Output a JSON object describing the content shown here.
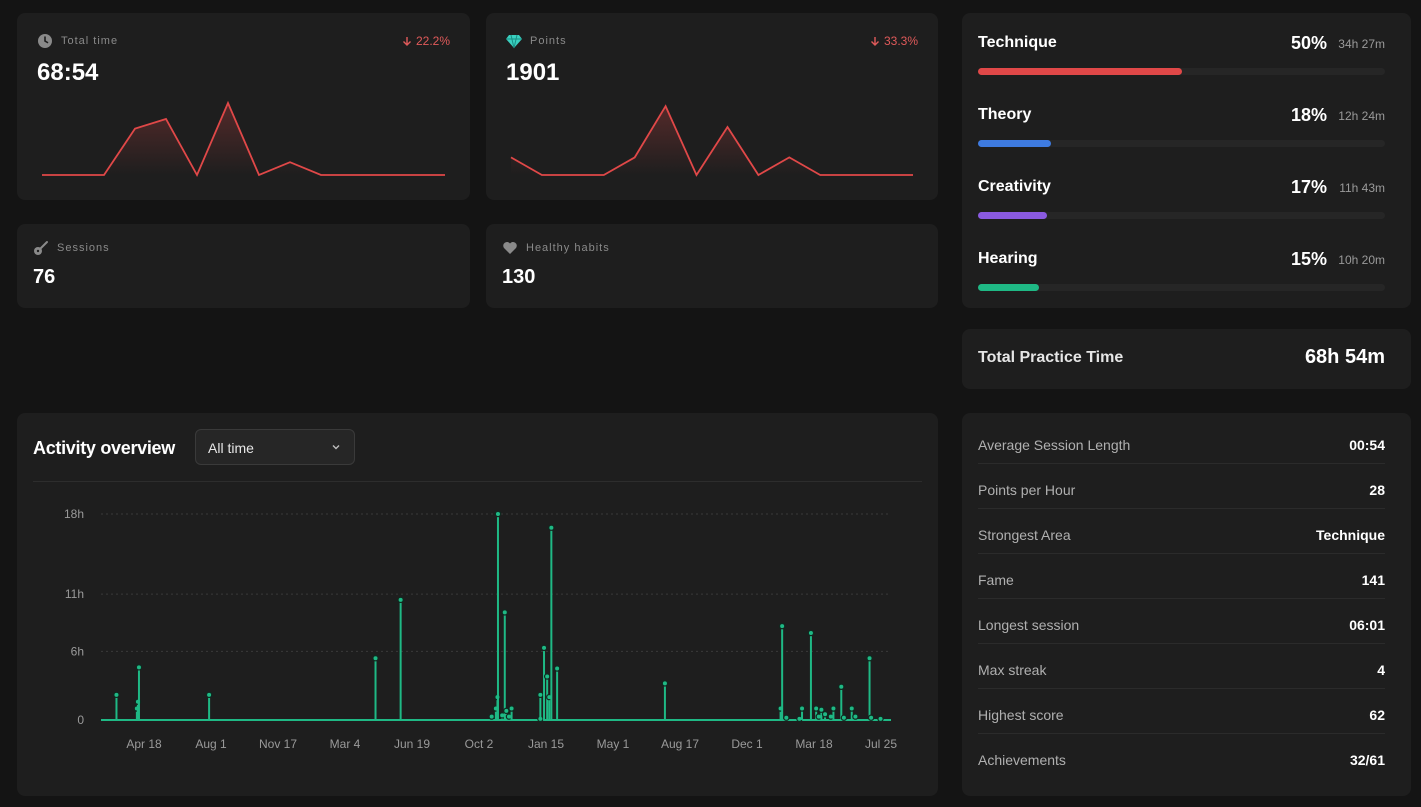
{
  "colors": {
    "background": "#141414",
    "card": "#1e1e1e",
    "accent_red": "#e04848",
    "accent_green": "#1fb985",
    "technique": "#e04848",
    "theory": "#3e7be0",
    "creativity": "#8a5ae0",
    "hearing": "#1fb985"
  },
  "stats": {
    "total_time": {
      "label": "Total time",
      "value": "68:54",
      "delta": "22.2%",
      "icon": "clock-icon",
      "trend": [
        0,
        0,
        0,
        2.9,
        3.5,
        0,
        4.5,
        0,
        0.8,
        0,
        0,
        0,
        0,
        0
      ]
    },
    "points": {
      "label": "Points",
      "value": "1901",
      "delta": "33.3%",
      "icon": "diamond-icon",
      "trend": [
        1.1,
        0,
        0,
        0,
        1.1,
        4.3,
        0,
        3.0,
        0,
        1.1,
        0,
        0,
        0,
        0
      ]
    },
    "sessions": {
      "label": "Sessions",
      "value": "76",
      "icon": "guitar-icon"
    },
    "healthy_habits": {
      "label": "Healthy habits",
      "value": "130",
      "icon": "heart-icon"
    }
  },
  "skills": [
    {
      "name": "Technique",
      "percent": "50%",
      "time": "34h 27m",
      "fill": 0.5,
      "color": "#e04848"
    },
    {
      "name": "Theory",
      "percent": "18%",
      "time": "12h 24m",
      "fill": 0.18,
      "color": "#3e7be0"
    },
    {
      "name": "Creativity",
      "percent": "17%",
      "time": "11h 43m",
      "fill": 0.17,
      "color": "#8a5ae0"
    },
    {
      "name": "Hearing",
      "percent": "15%",
      "time": "10h 20m",
      "fill": 0.15,
      "color": "#1fb985"
    }
  ],
  "total_practice": {
    "label": "Total Practice Time",
    "value": "68h 54m"
  },
  "metrics": [
    {
      "label": "Average Session Length",
      "value": "00:54"
    },
    {
      "label": "Points per Hour",
      "value": "28"
    },
    {
      "label": "Strongest Area",
      "value": "Technique"
    },
    {
      "label": "Fame",
      "value": "141"
    },
    {
      "label": "Longest session",
      "value": "06:01"
    },
    {
      "label": "Max streak",
      "value": "4"
    },
    {
      "label": "Highest score",
      "value": "62"
    },
    {
      "label": "Achievements",
      "value": "32/61"
    }
  ],
  "activity": {
    "title": "Activity overview",
    "range": "All time"
  },
  "chart_data": {
    "type": "line",
    "title": "",
    "y_ticks": [
      {
        "label": "18h",
        "value": 18
      },
      {
        "label": "11h",
        "value": 11
      },
      {
        "label": "6h",
        "value": 6
      },
      {
        "label": "0",
        "value": 0
      }
    ],
    "x_ticks": [
      "Apr 18",
      "Aug 1",
      "Nov 17",
      "Mar 4",
      "Jun 19",
      "Oct 2",
      "Jan 15",
      "May 1",
      "Aug 17",
      "Dec 1",
      "Mar 18",
      "Jul 25"
    ],
    "ylim": [
      0,
      18
    ],
    "grid": true,
    "spikes": [
      {
        "x": 0.02,
        "y": 2.2
      },
      {
        "x": 0.059,
        "y": 1.0
      },
      {
        "x": 0.061,
        "y": 1.6
      },
      {
        "x": 0.063,
        "y": 4.6
      },
      {
        "x": 0.197,
        "y": 2.2
      },
      {
        "x": 0.515,
        "y": 5.4
      },
      {
        "x": 0.563,
        "y": 10.5
      },
      {
        "x": 0.737,
        "y": 0.3
      },
      {
        "x": 0.745,
        "y": 1.0
      },
      {
        "x": 0.748,
        "y": 2.0
      },
      {
        "x": 0.749,
        "y": 18.0
      },
      {
        "x": 0.757,
        "y": 0.4
      },
      {
        "x": 0.762,
        "y": 9.4
      },
      {
        "x": 0.765,
        "y": 0.8
      },
      {
        "x": 0.77,
        "y": 0.3
      },
      {
        "x": 0.775,
        "y": 1.0
      },
      {
        "x": 0.83,
        "y": 0.1
      },
      {
        "x": 0.83,
        "y": 2.2
      },
      {
        "x": 0.837,
        "y": 6.3
      },
      {
        "x": 0.843,
        "y": 3.8
      },
      {
        "x": 0.847,
        "y": 2.0
      },
      {
        "x": 0.851,
        "y": 16.8
      },
      {
        "x": 0.862,
        "y": 4.5
      },
      {
        "x": 1.068,
        "y": 3.2
      },
      {
        "x": 1.289,
        "y": 1.0
      },
      {
        "x": 1.292,
        "y": 8.2
      },
      {
        "x": 1.3,
        "y": 0.2
      },
      {
        "x": 1.325,
        "y": 0.1
      },
      {
        "x": 1.33,
        "y": 1.0
      },
      {
        "x": 1.347,
        "y": 7.6
      },
      {
        "x": 1.357,
        "y": 1.0
      },
      {
        "x": 1.362,
        "y": 0.3
      },
      {
        "x": 1.367,
        "y": 0.9
      },
      {
        "x": 1.374,
        "y": 0.5
      },
      {
        "x": 1.385,
        "y": 0.3
      },
      {
        "x": 1.39,
        "y": 1.0
      },
      {
        "x": 1.405,
        "y": 2.9
      },
      {
        "x": 1.41,
        "y": 0.2
      },
      {
        "x": 1.425,
        "y": 1.0
      },
      {
        "x": 1.432,
        "y": 0.3
      },
      {
        "x": 1.459,
        "y": 5.4
      },
      {
        "x": 1.462,
        "y": 0.2
      },
      {
        "x": 1.48,
        "y": 0.1
      }
    ]
  }
}
